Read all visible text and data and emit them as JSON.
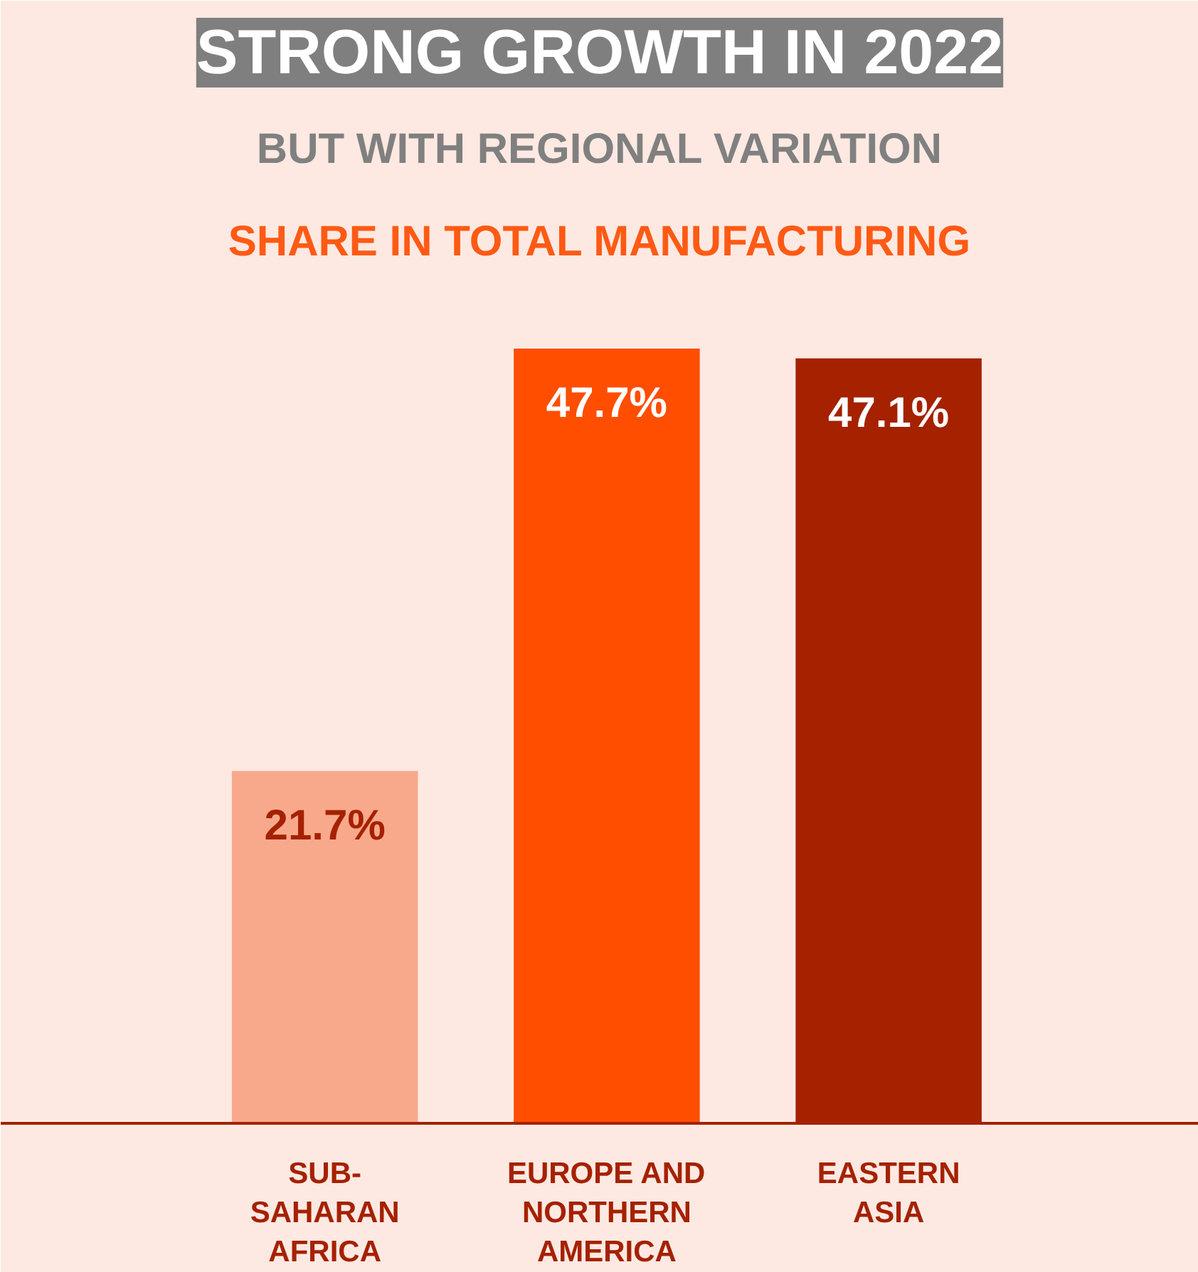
{
  "chart_data": {
    "type": "bar",
    "title": "STRONG GROWTH IN 2022",
    "subtitle": "BUT WITH REGIONAL VARIATION",
    "annotations": [
      "SHARE IN TOTAL MANUFACTURING"
    ],
    "categories": [
      "SUB-SAHARAN AFRICA",
      "EUROPE AND NORTHERN AMERICA",
      "EASTERN ASIA"
    ],
    "values": [
      21.7,
      47.7,
      47.1
    ],
    "colors": [
      "#f9a98b",
      "#ff4e00",
      "#a52100"
    ],
    "value_labels": [
      "21.7%",
      "47.7%",
      "47.1%"
    ]
  }
}
